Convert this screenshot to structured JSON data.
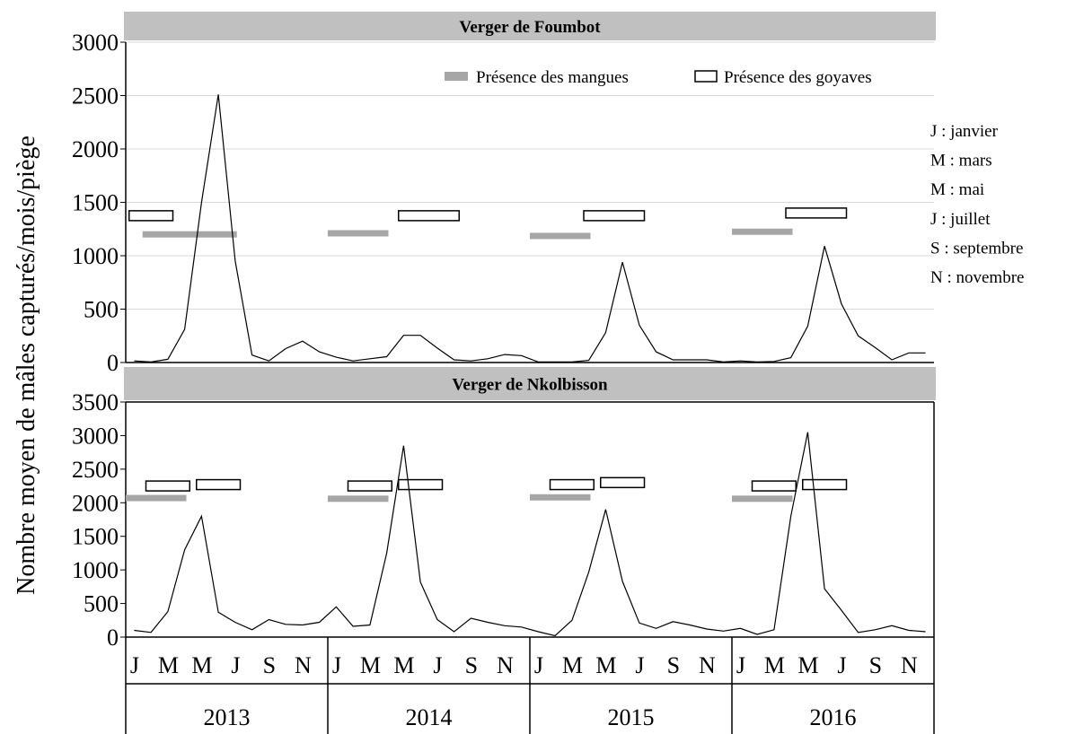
{
  "chart_data": {
    "type": "line",
    "ylabel": "Nombre moyen de mâles capturés/mois/piège",
    "month_labels": [
      "J",
      "M",
      "M",
      "J",
      "S",
      "N"
    ],
    "years": [
      "2013",
      "2014",
      "2015",
      "2016"
    ],
    "legend": {
      "mango": "Présence des mangues",
      "guava": "Présence des goyaves",
      "placement": "top-right"
    },
    "month_key": [
      "J : janvier",
      "M : mars",
      "M : mai",
      "J : juillet",
      "S : septembre",
      "N : novembre"
    ],
    "panels": [
      {
        "title": "Verger de Foumbot",
        "ylim": [
          0,
          3000
        ],
        "yticks": [
          "0",
          "500",
          "1000",
          "1500",
          "2000",
          "2500",
          "3000"
        ],
        "grid": true,
        "x": [
          "2013-01",
          "2013-02",
          "2013-03",
          "2013-04",
          "2013-05",
          "2013-06",
          "2013-07",
          "2013-08",
          "2013-09",
          "2013-10",
          "2013-11",
          "2013-12",
          "2014-01",
          "2014-02",
          "2014-03",
          "2014-04",
          "2014-05",
          "2014-06",
          "2014-07",
          "2014-08",
          "2014-09",
          "2014-10",
          "2014-11",
          "2014-12",
          "2015-01",
          "2015-02",
          "2015-03",
          "2015-04",
          "2015-05",
          "2015-06",
          "2015-07",
          "2015-08",
          "2015-09",
          "2015-10",
          "2015-11",
          "2015-12",
          "2016-01",
          "2016-02",
          "2016-03",
          "2016-04",
          "2016-05",
          "2016-06",
          "2016-07",
          "2016-08",
          "2016-09",
          "2016-10",
          "2016-11",
          "2016-12"
        ],
        "values": [
          15,
          5,
          30,
          310,
          1500,
          2510,
          950,
          70,
          15,
          130,
          200,
          100,
          50,
          15,
          35,
          55,
          255,
          255,
          135,
          25,
          15,
          35,
          75,
          65,
          5,
          5,
          5,
          20,
          280,
          940,
          350,
          100,
          25,
          25,
          25,
          5,
          15,
          5,
          10,
          45,
          340,
          1090,
          550,
          250,
          140,
          25,
          90,
          90
        ],
        "mango_bars": [
          {
            "from": "2013-02",
            "to": "2013-07",
            "y": 1200
          },
          {
            "from": "2014-01",
            "to": "2014-04",
            "y": 1210
          },
          {
            "from": "2015-01",
            "to": "2015-04",
            "y": 1185
          },
          {
            "from": "2016-01",
            "to": "2016-04",
            "y": 1225
          }
        ],
        "guava_boxes": [
          {
            "from": "2013-01",
            "to": "2013-03",
            "y": 1375
          },
          {
            "from": "2014-05",
            "to": "2014-08",
            "y": 1375
          },
          {
            "from": "2015-04",
            "to": "2015-07",
            "y": 1375
          },
          {
            "from": "2016-04",
            "to": "2016-07",
            "y": 1400
          }
        ]
      },
      {
        "title": "Verger de Nkolbisson",
        "ylim": [
          0,
          3500
        ],
        "yticks": [
          "0",
          "500",
          "1000",
          "1500",
          "2000",
          "2500",
          "3000",
          "3500"
        ],
        "grid": false,
        "x": [
          "2013-01",
          "2013-02",
          "2013-03",
          "2013-04",
          "2013-05",
          "2013-06",
          "2013-07",
          "2013-08",
          "2013-09",
          "2013-10",
          "2013-11",
          "2013-12",
          "2014-01",
          "2014-02",
          "2014-03",
          "2014-04",
          "2014-05",
          "2014-06",
          "2014-07",
          "2014-08",
          "2014-09",
          "2014-10",
          "2014-11",
          "2014-12",
          "2015-01",
          "2015-02",
          "2015-03",
          "2015-04",
          "2015-05",
          "2015-06",
          "2015-07",
          "2015-08",
          "2015-09",
          "2015-10",
          "2015-11",
          "2015-12",
          "2016-01",
          "2016-02",
          "2016-03",
          "2016-04",
          "2016-05",
          "2016-06",
          "2016-07",
          "2016-08",
          "2016-09",
          "2016-10",
          "2016-11",
          "2016-12"
        ],
        "values": [
          100,
          70,
          380,
          1300,
          1800,
          370,
          220,
          110,
          260,
          190,
          180,
          220,
          450,
          160,
          180,
          1250,
          2850,
          820,
          260,
          80,
          280,
          220,
          170,
          150,
          80,
          20,
          250,
          970,
          1900,
          830,
          210,
          130,
          230,
          180,
          120,
          90,
          130,
          40,
          110,
          1800,
          3050,
          720,
          400,
          70,
          110,
          170,
          100,
          80
        ],
        "mango_bars": [
          {
            "from": "2013-01",
            "to": "2013-04",
            "y": 2070
          },
          {
            "from": "2014-01",
            "to": "2014-04",
            "y": 2060
          },
          {
            "from": "2015-01",
            "to": "2015-04",
            "y": 2080
          },
          {
            "from": "2016-01",
            "to": "2016-04",
            "y": 2060
          }
        ],
        "guava_boxes": [
          {
            "from": "2013-02",
            "to": "2013-04",
            "y": 2250
          },
          {
            "from": "2013-05",
            "to": "2013-07",
            "y": 2270
          },
          {
            "from": "2014-02",
            "to": "2014-04",
            "y": 2250
          },
          {
            "from": "2014-05",
            "to": "2014-07",
            "y": 2270
          },
          {
            "from": "2015-02",
            "to": "2015-04",
            "y": 2270
          },
          {
            "from": "2015-05",
            "to": "2015-07",
            "y": 2300
          },
          {
            "from": "2016-02",
            "to": "2016-04",
            "y": 2250
          },
          {
            "from": "2016-05",
            "to": "2016-07",
            "y": 2270
          }
        ]
      }
    ]
  }
}
